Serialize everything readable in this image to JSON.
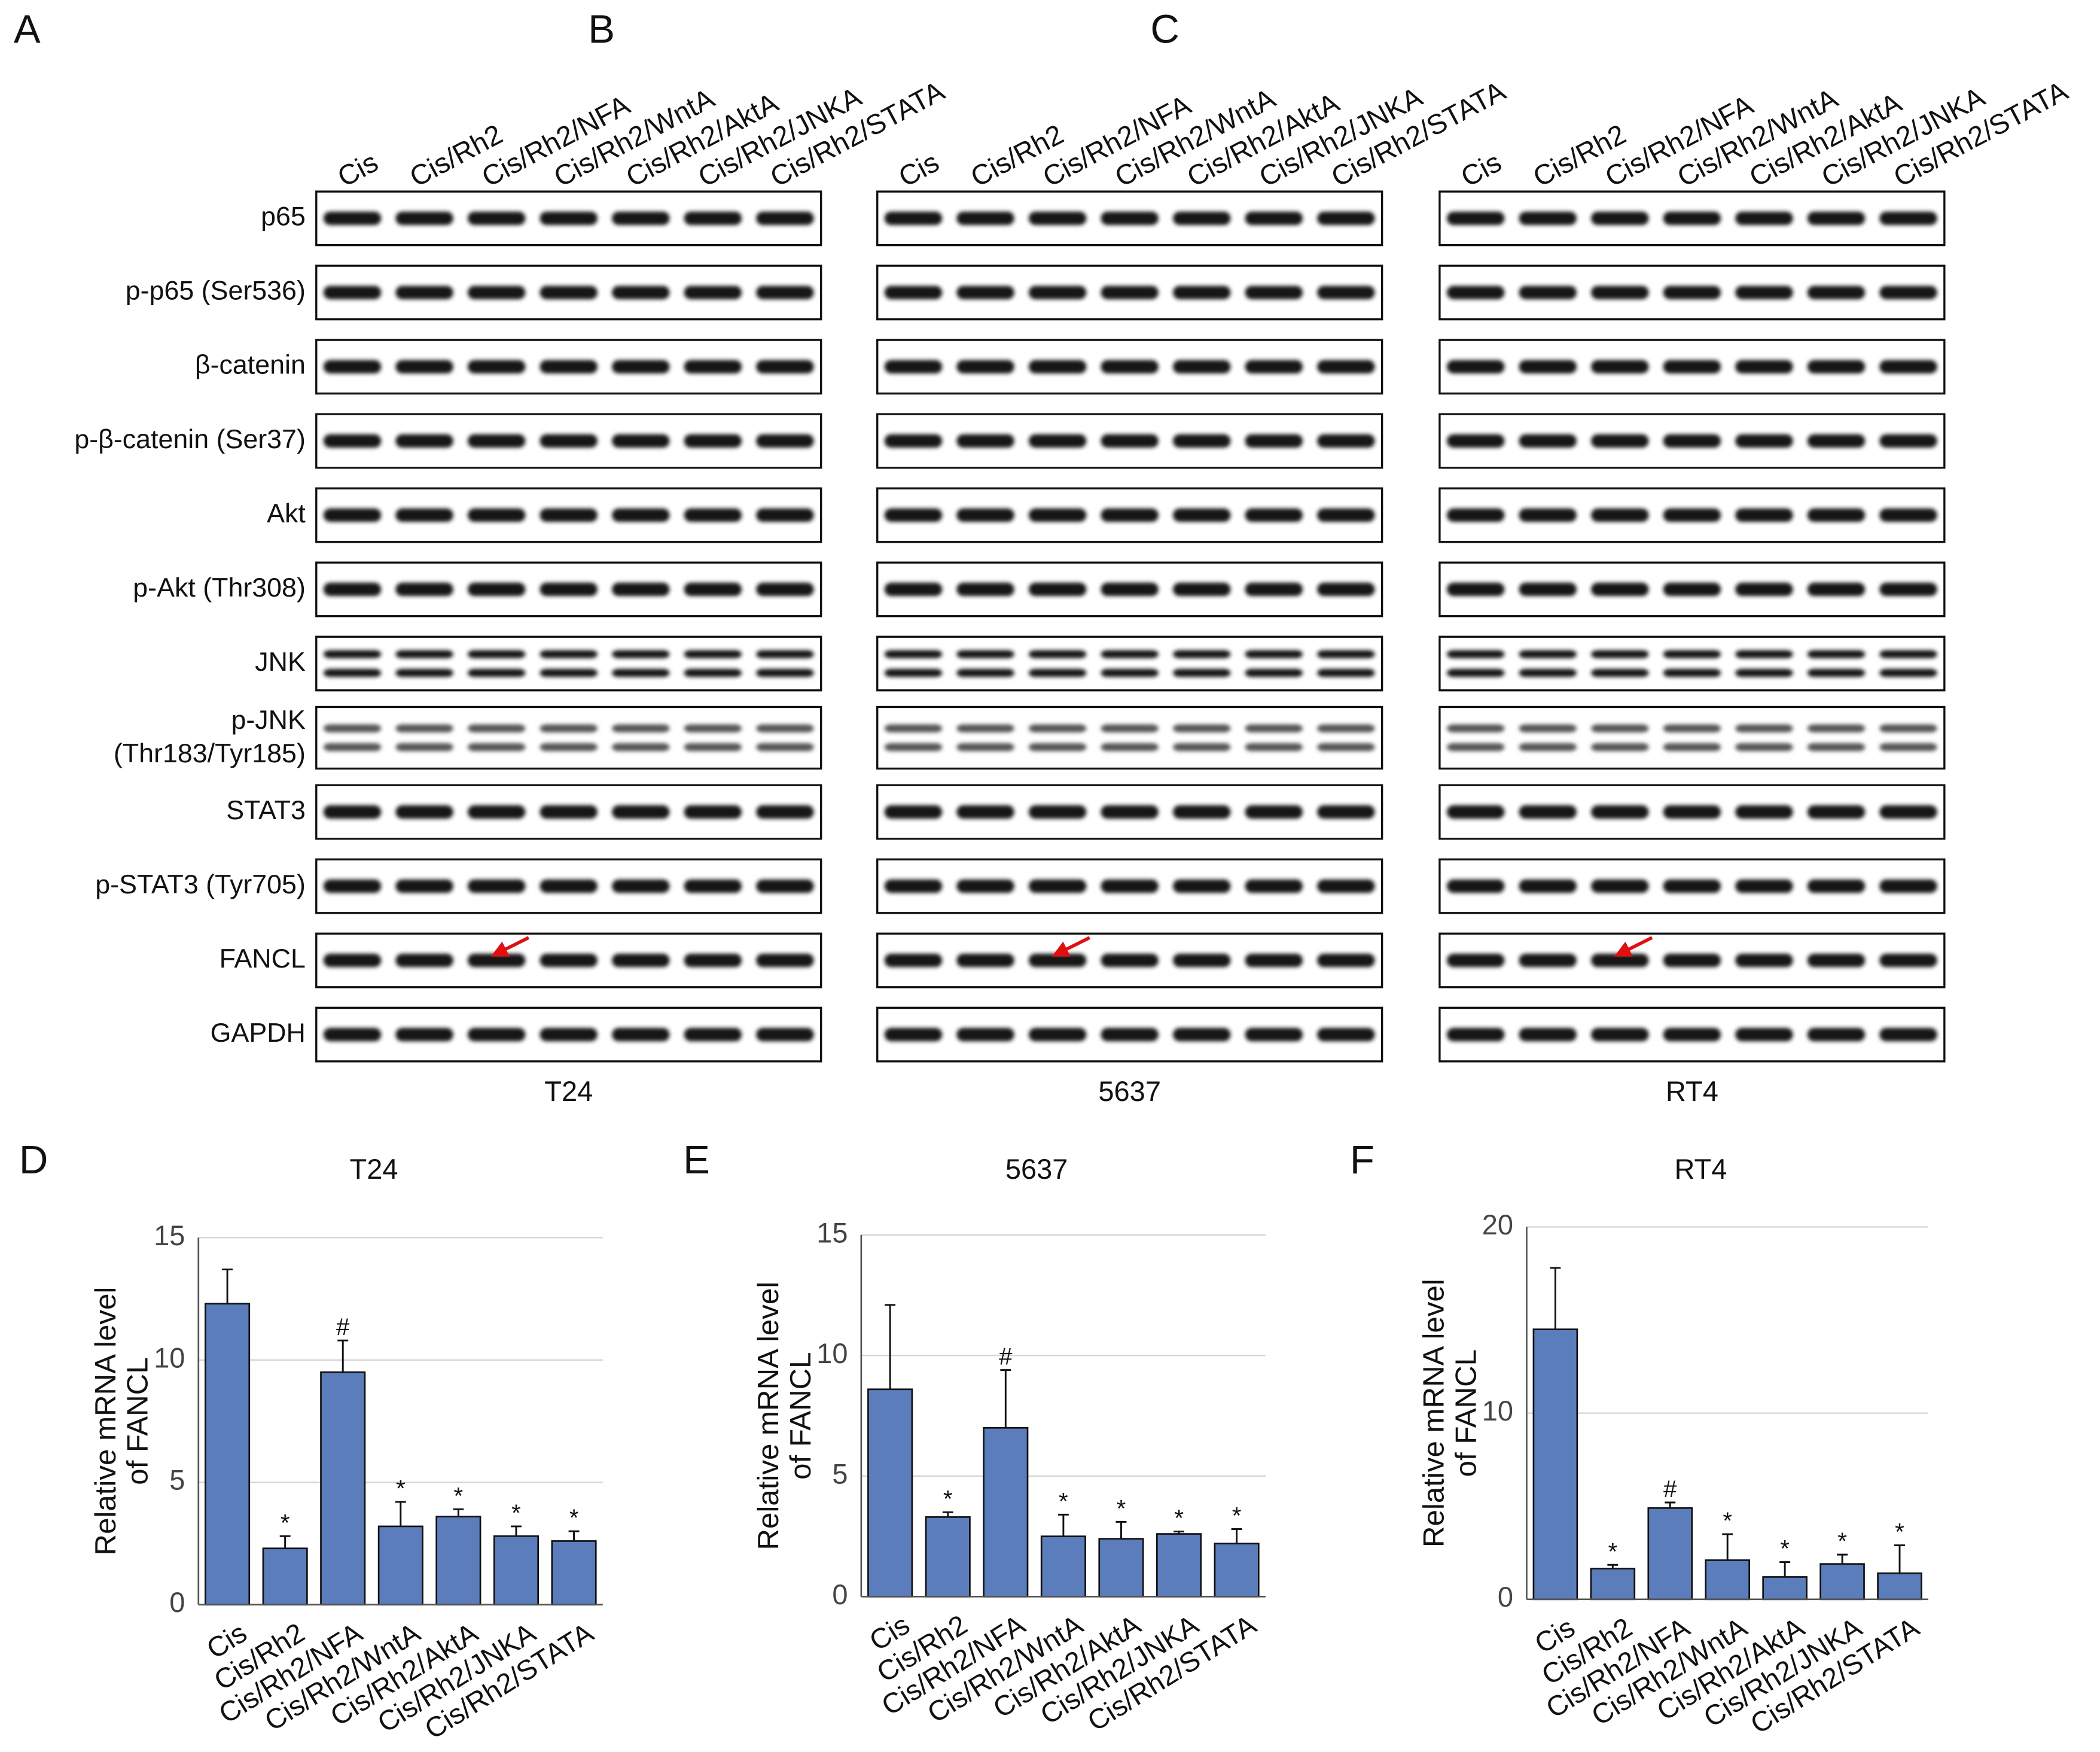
{
  "blots": {
    "rows": [
      [
        "p65"
      ],
      [
        "p-p65 (Ser536)"
      ],
      [
        "β-catenin"
      ],
      [
        "p-β-catenin (Ser37)"
      ],
      [
        "Akt"
      ],
      [
        "p-Akt (Thr308)"
      ],
      [
        "JNK"
      ],
      [
        "p-JNK",
        "(Thr183/Tyr185)"
      ],
      [
        "STAT3"
      ],
      [
        "p-STAT3 (Tyr705)"
      ],
      [
        "FANCL"
      ],
      [
        "GAPDH"
      ]
    ],
    "panels": [
      {
        "letter": "A",
        "cell_line": "T24",
        "lanes": [
          "Cis",
          "Cis/Rh2",
          "Cis/Rh2/NFA",
          "Cis/Rh2/WntA",
          "Cis/Rh2/AktA",
          "Cis/Rh2/JNKA",
          "Cis/Rh2/STATA"
        ]
      },
      {
        "letter": "B",
        "cell_line": "5637",
        "lanes": [
          "Cis",
          "Cis/Rh2",
          "Cis/Rh2/NFA",
          "Cis/Rh2/WntA",
          "Cis/Rh2/AktA",
          "Cis/Rh2/JNKA",
          "Cis/Rh2/STATA"
        ]
      },
      {
        "letter": "C",
        "cell_line": "RT4",
        "lanes": [
          "Cis",
          "Cis/Rh2",
          "Cis/Rh2/NFA",
          "Cis/Rh2/WntA",
          "Cis/Rh2/AktA",
          "Cis/Rh2/JNKA",
          "Cis/Rh2/STATA"
        ]
      }
    ]
  },
  "chart_data": [
    {
      "type": "bar",
      "letter": "D",
      "title": "T24",
      "y_label": [
        "Relative mRNA level",
        "of FANCL"
      ],
      "categories": [
        "Cis",
        "Cis/Rh2",
        "Cis/Rh2/NFA",
        "Cis/Rh2/WntA",
        "Cis/Rh2/AktA",
        "Cis/Rh2/JNKA",
        "Cis/Rh2/STATA"
      ],
      "values": [
        12.3,
        2.3,
        9.5,
        3.2,
        3.6,
        2.8,
        2.6
      ],
      "errors": [
        1.4,
        0.5,
        1.3,
        1.0,
        0.3,
        0.4,
        0.4
      ],
      "annotations": [
        null,
        "*",
        "#",
        "*",
        "*",
        "*",
        "*"
      ],
      "color": "#5b7dbb",
      "ylim": [
        0,
        15
      ],
      "yticks": [
        0,
        5,
        10,
        15
      ],
      "grid": true
    },
    {
      "type": "bar",
      "letter": "E",
      "title": "5637",
      "y_label": [
        "Relative mRNA level",
        "of FANCL"
      ],
      "categories": [
        "Cis",
        "Cis/Rh2",
        "Cis/Rh2/NFA",
        "Cis/Rh2/WntA",
        "Cis/Rh2/AktA",
        "Cis/Rh2/JNKA",
        "Cis/Rh2/STATA"
      ],
      "values": [
        8.6,
        3.3,
        7.0,
        2.5,
        2.4,
        2.6,
        2.2
      ],
      "errors": [
        3.5,
        0.2,
        2.4,
        0.9,
        0.7,
        0.1,
        0.6
      ],
      "annotations": [
        null,
        "*",
        "#",
        "*",
        "*",
        "*",
        "*"
      ],
      "color": "#5b7dbb",
      "ylim": [
        0,
        15
      ],
      "yticks": [
        0,
        5,
        10,
        15
      ],
      "grid": true
    },
    {
      "type": "bar",
      "letter": "F",
      "title": "RT4",
      "y_label": [
        "Relative mRNA level",
        "of FANCL"
      ],
      "categories": [
        "Cis",
        "Cis/Rh2",
        "Cis/Rh2/NFA",
        "Cis/Rh2/WntA",
        "Cis/Rh2/AktA",
        "Cis/Rh2/JNKA",
        "Cis/Rh2/STATA"
      ],
      "values": [
        14.5,
        1.65,
        4.9,
        2.1,
        1.2,
        1.9,
        1.4
      ],
      "errors": [
        3.3,
        0.2,
        0.3,
        1.4,
        0.8,
        0.5,
        1.5
      ],
      "annotations": [
        null,
        "*",
        "#",
        "*",
        "*",
        "*",
        "*"
      ],
      "color": "#5b7dbb",
      "ylim": [
        0,
        20
      ],
      "yticks": [
        0,
        10,
        20
      ],
      "grid": true
    }
  ]
}
